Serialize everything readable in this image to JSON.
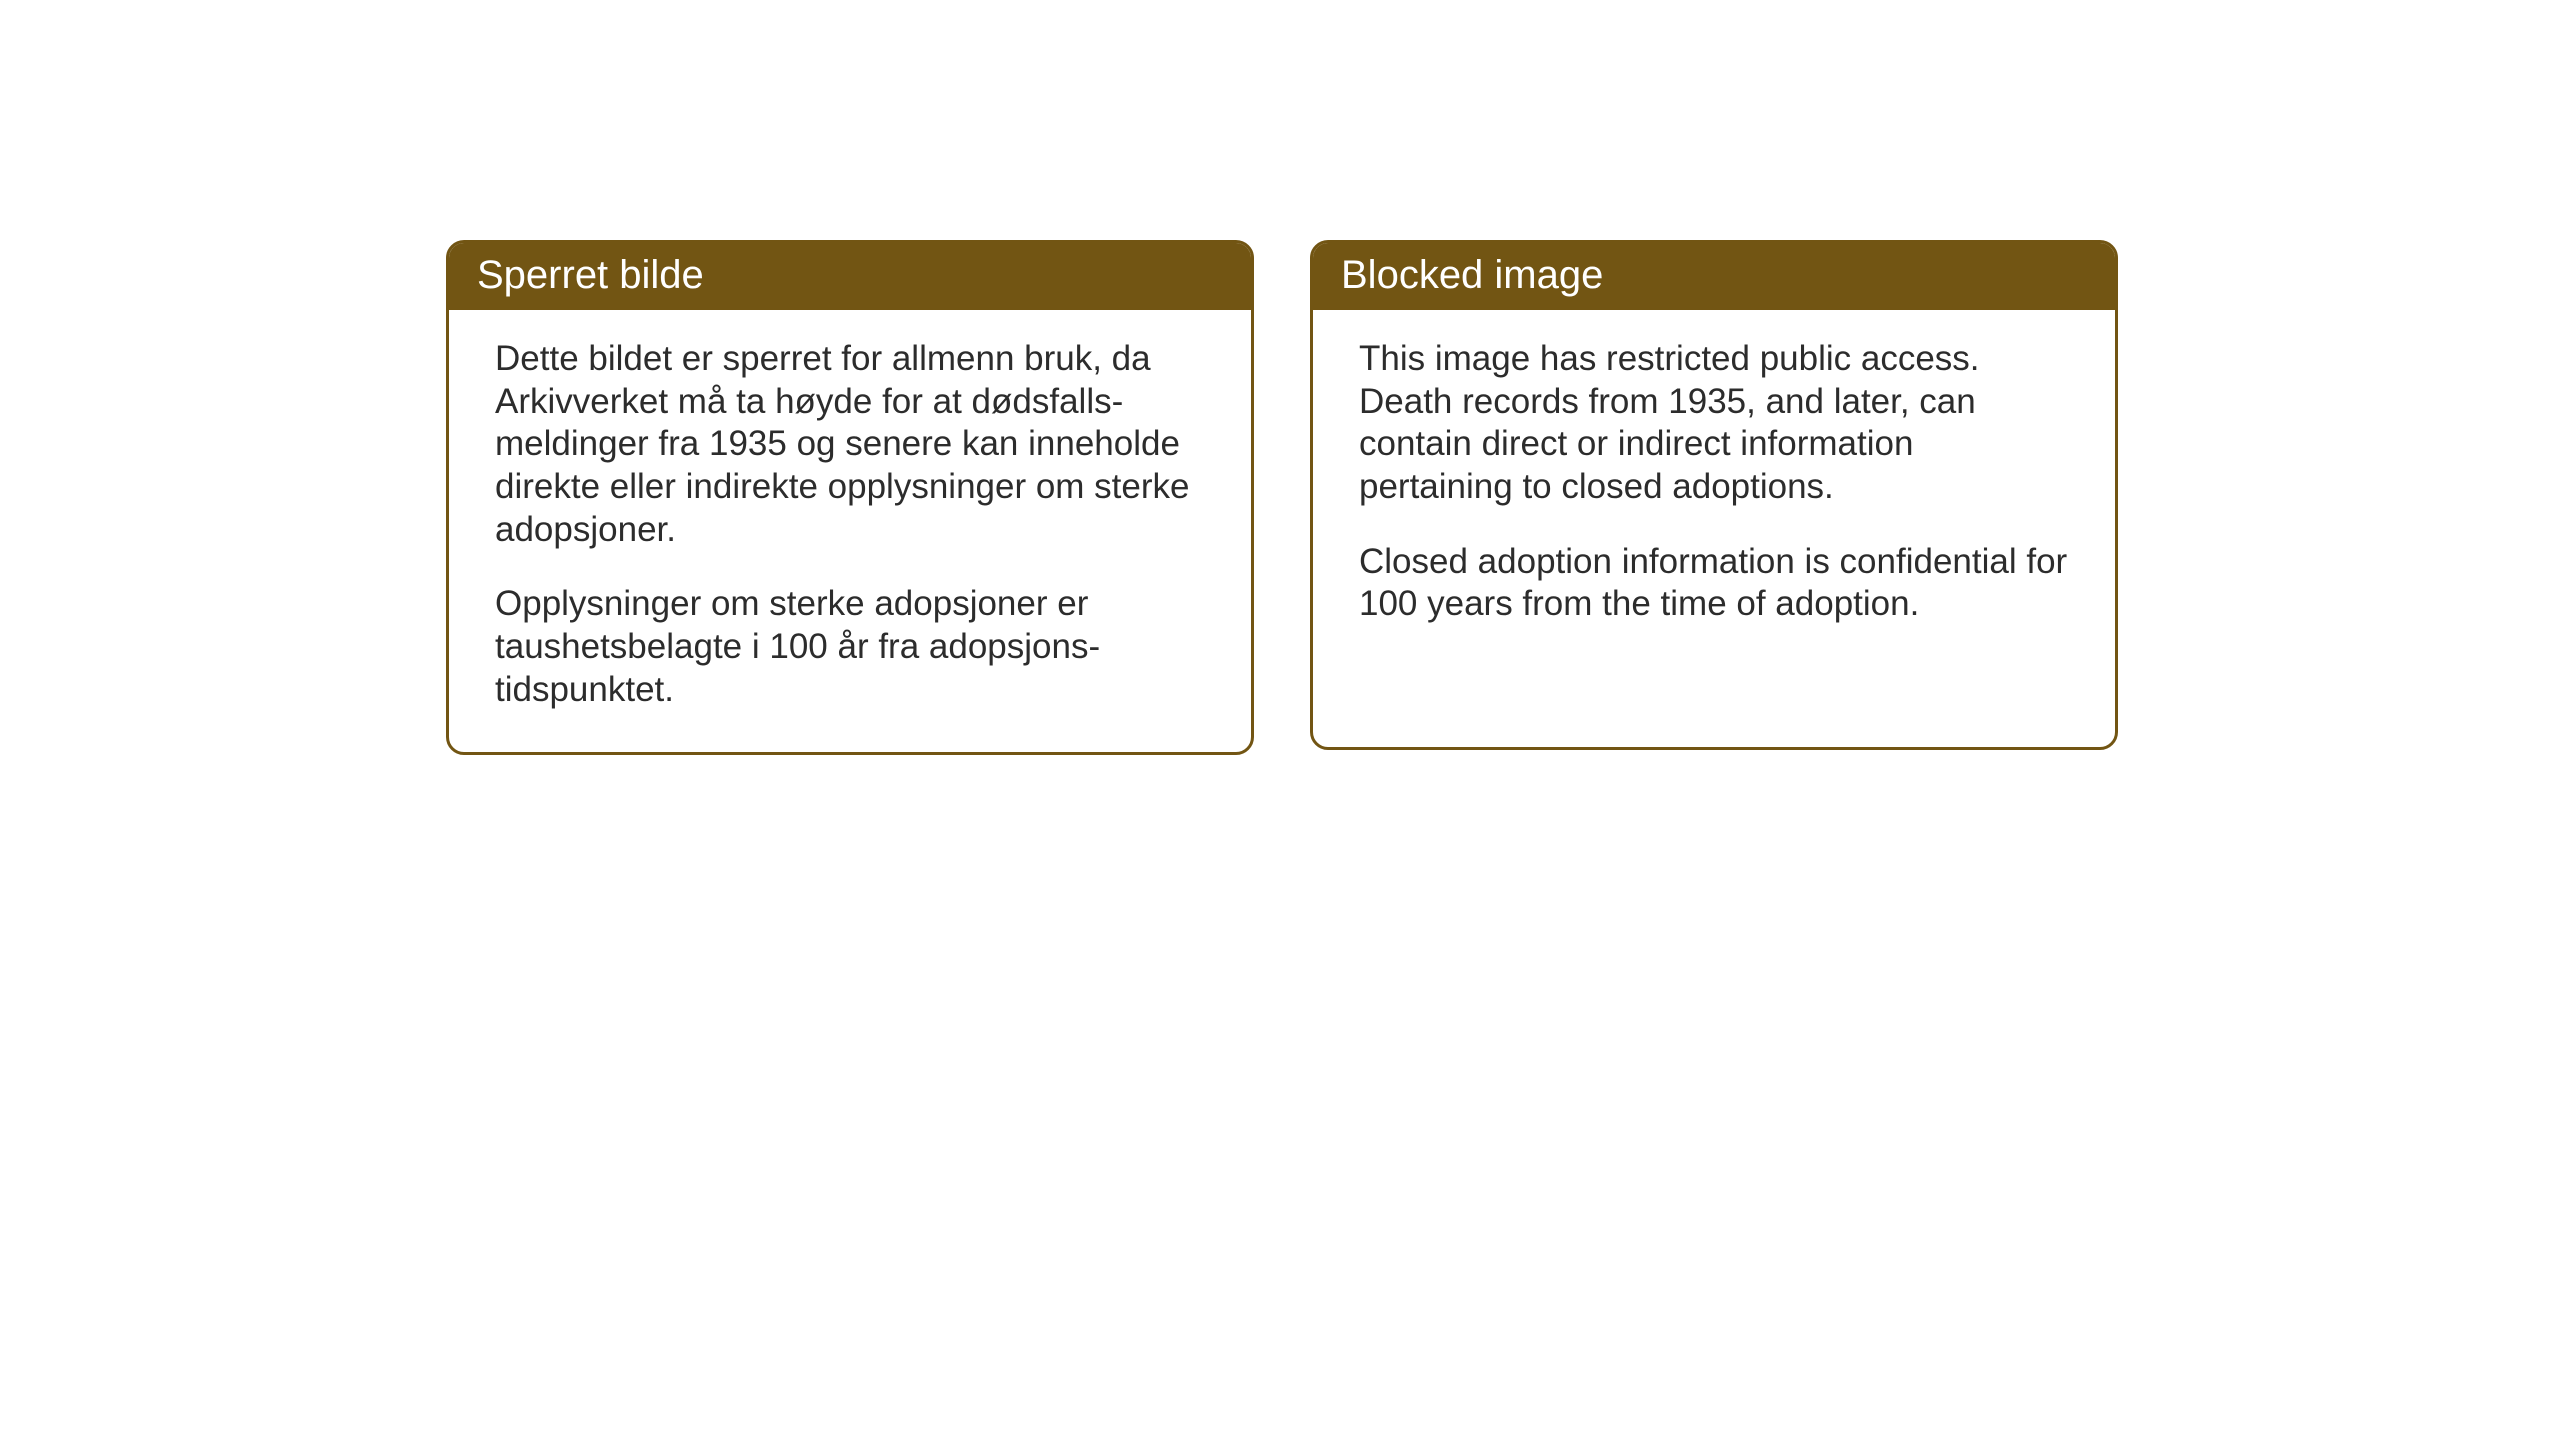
{
  "cards": {
    "left": {
      "title": "Sperret bilde",
      "paragraph1": "Dette bildet er sperret for allmenn bruk, da Arkivverket må ta høyde for at dødsfalls-meldinger fra 1935 og senere kan inneholde direkte eller indirekte opplysninger om sterke adopsjoner.",
      "paragraph2": "Opplysninger om sterke adopsjoner er taushetsbelagte i 100 år fra adopsjons-tidspunktet."
    },
    "right": {
      "title": "Blocked image",
      "paragraph1": "This image has restricted public access. Death records from 1935, and later, can contain direct or indirect information pertaining to closed adoptions.",
      "paragraph2": "Closed adoption information is confidential for 100 years from the time of adoption."
    }
  },
  "styling": {
    "header_bg_color": "#725513",
    "header_text_color": "#ffffff",
    "border_color": "#725513",
    "body_text_color": "#2c2c2c",
    "background_color": "#ffffff",
    "border_radius": 18,
    "border_width": 3,
    "title_fontsize": 40,
    "body_fontsize": 35
  }
}
